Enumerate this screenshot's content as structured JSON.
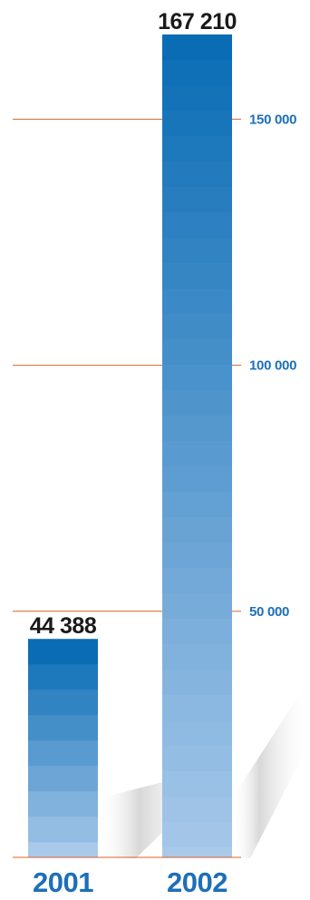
{
  "colors": {
    "bar_top": "#0a6cb5",
    "bar_bottom": "#a8c9ea",
    "gridline": "#d9652a",
    "axis_label": "#1d6fb8",
    "category_label": "#1d6fb8",
    "value_label": "#1a1a1a",
    "shadow": "#c8c8c8"
  },
  "chart_data": {
    "type": "bar",
    "categories": [
      "2001",
      "2002"
    ],
    "values": [
      44388,
      167210
    ],
    "value_labels": [
      "44 388",
      "167 210"
    ],
    "yticks": [
      50000,
      100000,
      150000
    ],
    "ytick_labels": [
      "50 000",
      "100 000",
      "150 000"
    ],
    "ylim": [
      0,
      167210
    ],
    "grid": true,
    "legend": "none"
  }
}
